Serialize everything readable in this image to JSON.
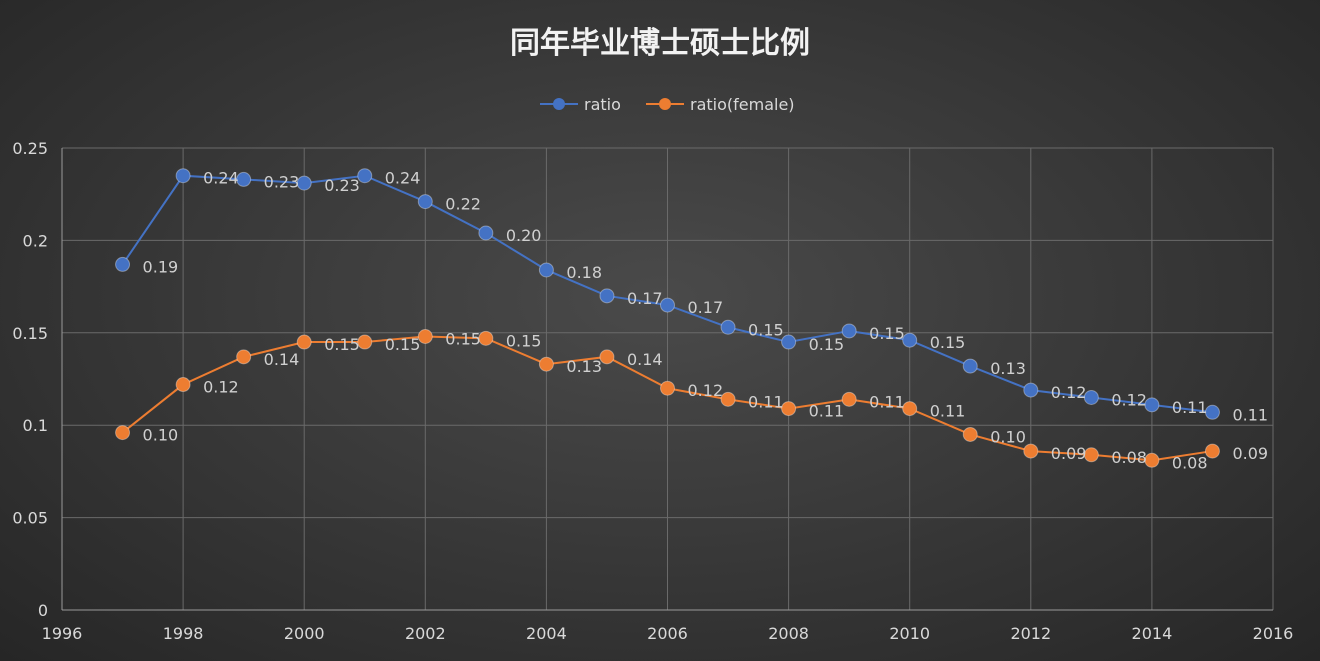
{
  "chart_data": {
    "type": "line",
    "title": "同年毕业博士硕士比例",
    "xlim": [
      1996,
      2016
    ],
    "ylim": [
      0,
      0.25
    ],
    "x_ticks": [
      "1996",
      "1998",
      "2000",
      "2002",
      "2004",
      "2006",
      "2008",
      "2010",
      "2012",
      "2014",
      "2016"
    ],
    "y_ticks": [
      "0",
      "0.05",
      "0.1",
      "0.15",
      "0.2",
      "0.25"
    ],
    "legend_position": "top",
    "grid": true,
    "x": [
      1997,
      1998,
      1999,
      2000,
      2001,
      2002,
      2003,
      2004,
      2005,
      2006,
      2007,
      2008,
      2009,
      2010,
      2011,
      2012,
      2013,
      2014,
      2015
    ],
    "series": [
      {
        "name": "ratio",
        "color": "#4472c4",
        "values": [
          0.187,
          0.235,
          0.233,
          0.231,
          0.235,
          0.221,
          0.204,
          0.184,
          0.17,
          0.165,
          0.153,
          0.145,
          0.151,
          0.146,
          0.132,
          0.119,
          0.115,
          0.111,
          0.107
        ],
        "labels": [
          "0.19",
          "0.24",
          "0.23",
          "0.23",
          "0.24",
          "0.22",
          "0.20",
          "0.18",
          "0.17",
          "0.17",
          "0.15",
          "0.15",
          "0.15",
          "0.15",
          "0.13",
          "0.12",
          "0.12",
          "0.11",
          "0.11"
        ]
      },
      {
        "name": "ratio(female)",
        "color": "#ed7d31",
        "values": [
          0.096,
          0.122,
          0.137,
          0.145,
          0.145,
          0.148,
          0.147,
          0.133,
          0.137,
          0.12,
          0.114,
          0.109,
          0.114,
          0.109,
          0.095,
          0.086,
          0.084,
          0.081,
          0.086
        ],
        "labels": [
          "0.10",
          "0.12",
          "0.14",
          "0.15",
          "0.15",
          "0.15",
          "0.15",
          "0.13",
          "0.14",
          "0.12",
          "0.11",
          "0.11",
          "0.11",
          "0.11",
          "0.10",
          "0.09",
          "0.08",
          "0.08",
          "0.09"
        ]
      }
    ]
  }
}
